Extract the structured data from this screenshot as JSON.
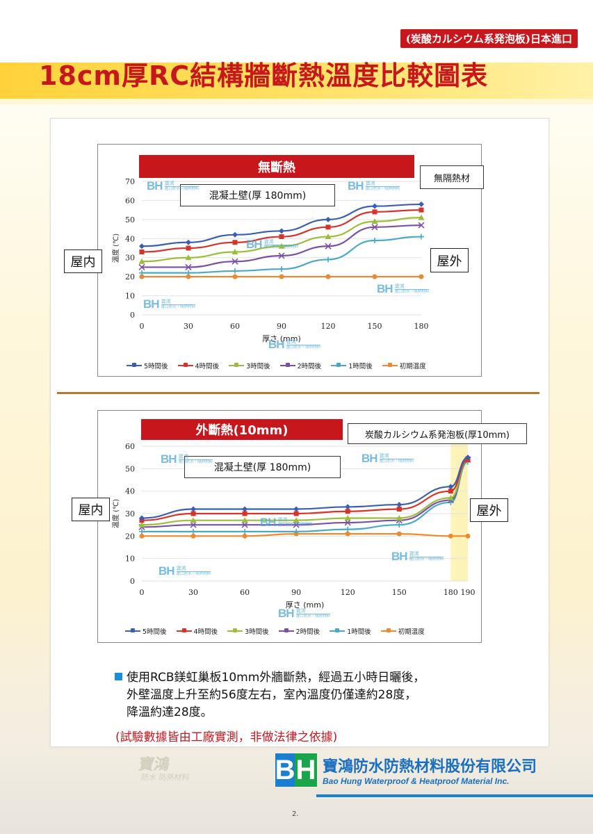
{
  "header": {
    "subtitle": "(炭酸カルシウム系発泡板)日本進口",
    "title": "18cm厚RC結構牆斷熱溫度比較圖表"
  },
  "watermark": {
    "logo": "BH",
    "name": "寶鴻",
    "tag": "進口防水・隔熱材料"
  },
  "legend_labels": [
    "5時間後",
    "4時間後",
    "3時間後",
    "2時間後",
    "1時間後",
    "初期溫度"
  ],
  "series_colors": [
    "#3a5fb0",
    "#d6332a",
    "#9cbd3a",
    "#7b4fa6",
    "#49a9c4",
    "#f0892d"
  ],
  "chart1": {
    "banner": "無斷熱",
    "material_label": "無隔熱材",
    "wall_label": "混凝土壁(厚 180mm)",
    "side_in": "屋内",
    "side_out": "屋外",
    "ylabel": "溫度 (℃)",
    "xlabel": "厚さ (mm)"
  },
  "chart2": {
    "banner": "外斷熱(10mm)",
    "material_label": "炭酸カルシウム系発泡板(厚10mm)",
    "wall_label": "混凝土壁(厚 180mm)",
    "side_in": "屋内",
    "side_out": "屋外",
    "ylabel": "溫度 (℃)",
    "xlabel": "厚さ (mm)"
  },
  "chart_data": [
    {
      "type": "line",
      "title": "無斷熱",
      "xlabel": "厚さ (mm)",
      "ylabel": "溫度 (℃)",
      "x": [
        0,
        30,
        60,
        90,
        120,
        150,
        180
      ],
      "xlim": [
        0,
        180
      ],
      "ylim": [
        0,
        70
      ],
      "yticks": [
        0,
        10,
        20,
        30,
        40,
        50,
        60,
        70
      ],
      "series": [
        {
          "name": "5時間後",
          "values": [
            36,
            38,
            42,
            44,
            50,
            57,
            58
          ]
        },
        {
          "name": "4時間後",
          "values": [
            33,
            35,
            38,
            41,
            46,
            54,
            55
          ]
        },
        {
          "name": "3時間後",
          "values": [
            28,
            30,
            33,
            36,
            41,
            49,
            51
          ]
        },
        {
          "name": "2時間後",
          "values": [
            25,
            25,
            28,
            31,
            36,
            46,
            47
          ]
        },
        {
          "name": "1時間後",
          "values": [
            22,
            22,
            23,
            24,
            29,
            39,
            41
          ]
        },
        {
          "name": "初期溫度",
          "values": [
            20,
            20,
            20,
            20,
            20,
            20,
            20
          ]
        }
      ]
    },
    {
      "type": "line",
      "title": "外斷熱(10mm)",
      "xlabel": "厚さ (mm)",
      "ylabel": "溫度 (℃)",
      "x": [
        0,
        30,
        60,
        90,
        120,
        150,
        180,
        190
      ],
      "xlim": [
        0,
        190
      ],
      "ylim": [
        0,
        60
      ],
      "yticks": [
        0,
        10,
        20,
        30,
        40,
        50,
        60
      ],
      "insulation_band_x": [
        180,
        190
      ],
      "series": [
        {
          "name": "5時間後",
          "values": [
            28,
            32,
            32,
            32,
            33,
            34,
            42,
            55
          ]
        },
        {
          "name": "4時間後",
          "values": [
            27,
            30,
            30,
            30,
            31,
            32,
            40,
            54
          ]
        },
        {
          "name": "3時間後",
          "values": [
            25,
            27,
            27,
            27,
            28,
            28,
            37,
            54
          ]
        },
        {
          "name": "2時間後",
          "values": [
            24,
            25,
            25,
            25,
            26,
            27,
            36,
            54
          ]
        },
        {
          "name": "1時間後",
          "values": [
            22,
            22,
            22,
            22,
            23,
            25,
            35,
            53
          ]
        },
        {
          "name": "初期溫度",
          "values": [
            20,
            20,
            20,
            21,
            21,
            21,
            20,
            20
          ]
        }
      ]
    }
  ],
  "note": {
    "lines": [
      "使用RCB鎂虹巢板10mm外牆斷熱，經過五小時日曬後，",
      "外壁溫度上升至約56度左右，室內溫度仍僅達約28度，",
      "降溫約達28度。"
    ],
    "disclaimer": "(試驗數據皆由工廠實測，非做法律之依據)"
  },
  "company": {
    "logo_b": "B",
    "logo_h": "H",
    "name_cn": "寶鴻防水防熱材料股份有限公司",
    "name_en": "Bao Hung Waterproof & Heatproof Material Inc.",
    "building_sign": "寶鴻",
    "building_sign_sub": "防水 防熱材料"
  },
  "page_number": "2."
}
